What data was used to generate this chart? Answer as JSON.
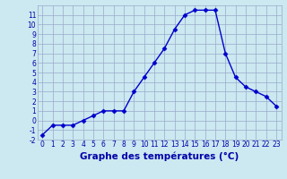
{
  "hours": [
    0,
    1,
    2,
    3,
    4,
    5,
    6,
    7,
    8,
    9,
    10,
    11,
    12,
    13,
    14,
    15,
    16,
    17,
    18,
    19,
    20,
    21,
    22,
    23
  ],
  "temps": [
    -1.5,
    -0.5,
    -0.5,
    -0.5,
    0.0,
    0.5,
    1.0,
    1.0,
    1.0,
    3.0,
    4.5,
    6.0,
    7.5,
    9.5,
    11.0,
    11.5,
    11.5,
    11.5,
    7.0,
    4.5,
    3.5,
    3.0,
    2.5,
    1.5
  ],
  "ylim": [
    -2,
    12
  ],
  "xlim": [
    -0.5,
    23.5
  ],
  "yticks": [
    -2,
    -1,
    0,
    1,
    2,
    3,
    4,
    5,
    6,
    7,
    8,
    9,
    10,
    11
  ],
  "xticks": [
    0,
    1,
    2,
    3,
    4,
    5,
    6,
    7,
    8,
    9,
    10,
    11,
    12,
    13,
    14,
    15,
    16,
    17,
    18,
    19,
    20,
    21,
    22,
    23
  ],
  "xlabel": "Graphe des températures (°C)",
  "line_color": "#0000cc",
  "marker": "D",
  "marker_size": 2.5,
  "bg_color": "#cce8f0",
  "grid_color": "#99aacc",
  "tick_color": "#0000aa",
  "label_color": "#0000aa",
  "tick_fontsize": 5.5,
  "xlabel_fontsize": 7.5,
  "linewidth": 1.0
}
